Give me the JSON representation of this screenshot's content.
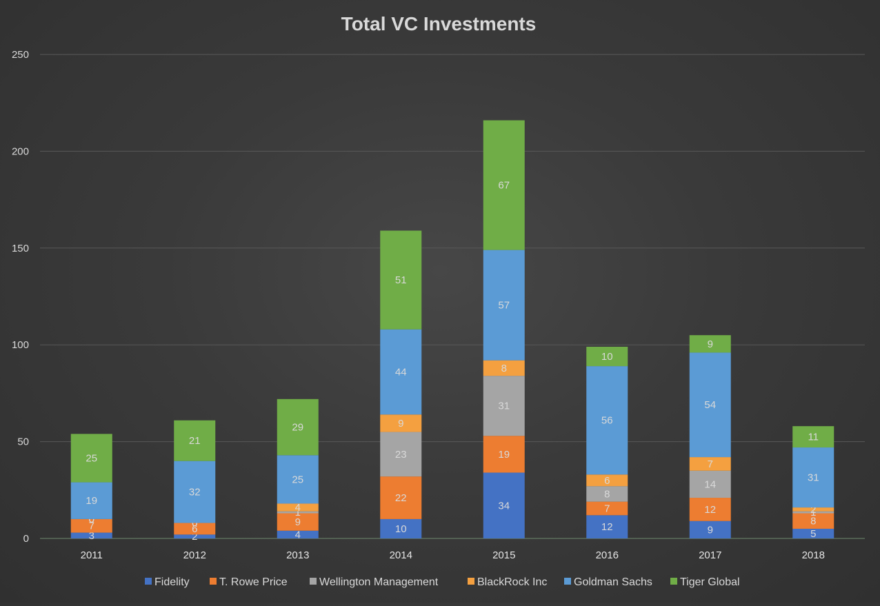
{
  "chart_data": {
    "type": "bar",
    "stacked": true,
    "title": "Total VC Investments",
    "xlabel": "",
    "ylabel": "",
    "ylim": [
      0,
      250
    ],
    "yticks": [
      0,
      50,
      100,
      150,
      200,
      250
    ],
    "grid": true,
    "legend_position": "bottom",
    "categories": [
      "2011",
      "2012",
      "2013",
      "2014",
      "2015",
      "2016",
      "2017",
      "2018"
    ],
    "series": [
      {
        "name": "Fidelity",
        "color": "#4472c4",
        "values": [
          3,
          2,
          4,
          10,
          34,
          12,
          9,
          5
        ]
      },
      {
        "name": "T. Rowe Price",
        "color": "#ed7d31",
        "values": [
          7,
          6,
          9,
          22,
          19,
          7,
          12,
          8
        ]
      },
      {
        "name": "Wellington Management",
        "color": "#a5a5a5",
        "values": [
          0,
          0,
          1,
          23,
          31,
          8,
          14,
          1
        ]
      },
      {
        "name": "BlackRock Inc",
        "color": "#f4a040",
        "values": [
          0,
          0,
          4,
          9,
          8,
          6,
          7,
          2
        ]
      },
      {
        "name": "Goldman Sachs",
        "color": "#5b9bd5",
        "values": [
          19,
          32,
          25,
          44,
          57,
          56,
          54,
          31
        ]
      },
      {
        "name": "Tiger Global",
        "color": "#70ad47",
        "values": [
          25,
          21,
          29,
          51,
          67,
          10,
          9,
          11
        ]
      }
    ]
  }
}
